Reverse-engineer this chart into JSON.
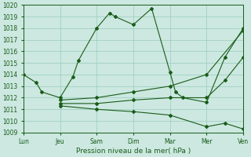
{
  "background_color": "#cce8e0",
  "grid_color": "#99ccbb",
  "line_color": "#1a5c1a",
  "ylim": [
    1009,
    1020
  ],
  "yticks": [
    1009,
    1010,
    1011,
    1012,
    1013,
    1014,
    1015,
    1016,
    1017,
    1018,
    1019,
    1020
  ],
  "xlabel": "Pression niveau de la mer( hPa )",
  "x_labels": [
    "Lun",
    "Jeu",
    "Sam",
    "Dim",
    "Mar",
    "Mer",
    "Ven"
  ],
  "x_positions": [
    0,
    1,
    2,
    3,
    4,
    5,
    6
  ],
  "xlim": [
    0,
    6
  ],
  "lines": [
    {
      "x": [
        0,
        0.35,
        0.5,
        1,
        1.35,
        1.5,
        2,
        2.35,
        2.5,
        3,
        3.5,
        4,
        4.15,
        4.35,
        5,
        5.5,
        6
      ],
      "y": [
        1014,
        1013.3,
        1012.5,
        1012,
        1013.8,
        1015.2,
        1018.0,
        1019.3,
        1019.0,
        1018.3,
        1019.7,
        1014.2,
        1012.5,
        1012.0,
        1011.6,
        1015.5,
        1018.0
      ]
    },
    {
      "x": [
        1,
        2,
        3,
        4,
        5,
        6
      ],
      "y": [
        1011.8,
        1012.0,
        1012.5,
        1013.0,
        1014.0,
        1017.8
      ]
    },
    {
      "x": [
        1,
        2,
        3,
        4,
        5,
        5.5,
        6
      ],
      "y": [
        1011.5,
        1011.5,
        1011.8,
        1012.0,
        1012.0,
        1013.5,
        1015.5
      ]
    },
    {
      "x": [
        1,
        2,
        3,
        4,
        5,
        5.5,
        6
      ],
      "y": [
        1011.3,
        1011.0,
        1010.8,
        1010.5,
        1009.5,
        1009.8,
        1009.3
      ]
    }
  ]
}
